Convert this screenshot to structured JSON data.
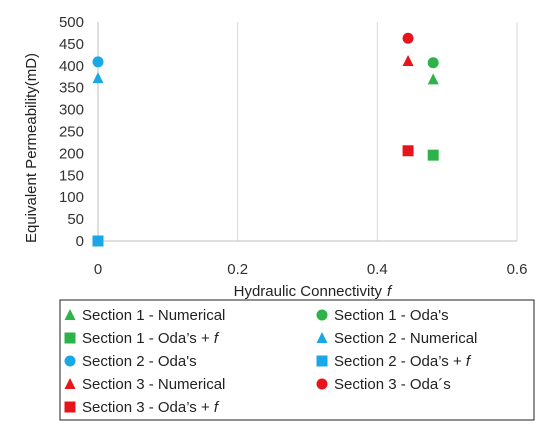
{
  "chart_data": {
    "type": "scatter",
    "xlabel": "Hydraulic Connectivity",
    "xlabel_symbol": "f",
    "ylabel": "Equivalent Permeability(mD)",
    "xlim": [
      0,
      0.6
    ],
    "ylim": [
      0,
      500
    ],
    "x_ticks": [
      "0",
      "0.2",
      "0.4",
      "0.6"
    ],
    "y_ticks": [
      "0",
      "50",
      "100",
      "150",
      "200",
      "250",
      "300",
      "350",
      "400",
      "450",
      "500"
    ],
    "grid": "vertical",
    "legend_position": "bottom",
    "series": [
      {
        "name": "Section 1 - Numerical",
        "marker": "triangle",
        "color": "#2db34a",
        "points": [
          [
            0.48,
            369
          ]
        ]
      },
      {
        "name": "Section 1 - Oda's",
        "marker": "circle",
        "color": "#2db34a",
        "points": [
          [
            0.48,
            407
          ]
        ]
      },
      {
        "name": "Section 1 - Oda's + f",
        "marker": "square",
        "color": "#2db34a",
        "points": [
          [
            0.48,
            196
          ]
        ]
      },
      {
        "name": "Section 2 - Numerical",
        "marker": "triangle",
        "color": "#1aa7e8",
        "points": [
          [
            0,
            372
          ]
        ]
      },
      {
        "name": "Section 2 - Oda's",
        "marker": "circle",
        "color": "#1aa7e8",
        "points": [
          [
            0,
            409
          ]
        ]
      },
      {
        "name": "Section 2 - Oda's + f",
        "marker": "square",
        "color": "#1aa7e8",
        "points": [
          [
            0,
            0
          ]
        ]
      },
      {
        "name": "Section 3 - Numerical",
        "marker": "triangle",
        "color": "#e8141c",
        "points": [
          [
            0.444,
            411
          ]
        ]
      },
      {
        "name": "Section 3 - Oda´s",
        "marker": "circle",
        "color": "#e8141c",
        "points": [
          [
            0.444,
            463
          ]
        ]
      },
      {
        "name": "Section 3 - Oda's + f",
        "marker": "square",
        "color": "#e8141c",
        "points": [
          [
            0.444,
            206
          ]
        ]
      }
    ],
    "legend": [
      {
        "text": "Section 1 - Numerical",
        "marker": "triangle",
        "color": "#2db34a"
      },
      {
        "text": "Section 1 - Oda's",
        "marker": "circle",
        "color": "#2db34a"
      },
      {
        "text": "Section 1 - Oda’s + f",
        "marker": "square",
        "color": "#2db34a"
      },
      {
        "text": "Section 2 - Numerical",
        "marker": "triangle",
        "color": "#1aa7e8"
      },
      {
        "text": "Section 2 - Oda's",
        "marker": "circle",
        "color": "#1aa7e8"
      },
      {
        "text": "Section 2 - Oda’s + f",
        "marker": "square",
        "color": "#1aa7e8"
      },
      {
        "text": "Section 3 - Numerical",
        "marker": "triangle",
        "color": "#e8141c"
      },
      {
        "text": "Section 3 - Oda´s",
        "marker": "circle",
        "color": "#e8141c"
      },
      {
        "text": "Section 3 - Oda’s + f",
        "marker": "square",
        "color": "#e8141c"
      }
    ]
  }
}
